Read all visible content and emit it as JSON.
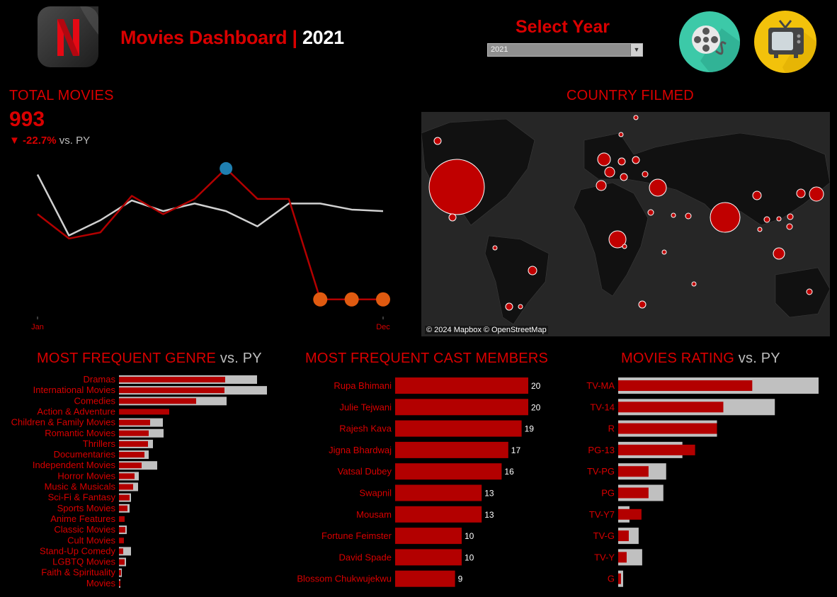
{
  "header": {
    "title": "Movies Dashboard",
    "separator": "|",
    "year": "2021",
    "select_label": "Select Year",
    "select_value": "2021"
  },
  "icons": {
    "logo": "netflix-logo-icon",
    "film": "film-reel-icon",
    "tv": "television-icon"
  },
  "colors": {
    "accent_red": "#d90000",
    "bar_red": "#b30000",
    "bar_grey": "#c0c0c0",
    "line_grey": "#d0d0d0",
    "highlight_blue": "#1f7fb0",
    "highlight_orange": "#e05a10"
  },
  "total_movies": {
    "label": "TOTAL MOVIES",
    "value": "993",
    "delta": "-22.7%",
    "delta_suffix": "vs. PY"
  },
  "country_map": {
    "title": "COUNTRY FILMED",
    "credit": "© 2024 Mapbox © OpenStreetMap"
  },
  "chart_data": [
    {
      "type": "line",
      "name": "monthly-movies",
      "x_tick_labels": [
        "Jan",
        "Dec"
      ],
      "x": [
        1,
        2,
        3,
        4,
        5,
        6,
        7,
        8,
        9,
        10,
        11,
        12
      ],
      "series": [
        {
          "values": [
            94,
            78,
            82,
            106,
            94,
            104,
            124,
            104,
            104,
            38,
            38,
            38
          ]
        },
        {
          "values": [
            120,
            80,
            90,
            103,
            96,
            101,
            96,
            86,
            101,
            101,
            97,
            96
          ]
        }
      ],
      "ylim": [
        30,
        130
      ]
    },
    {
      "type": "bar",
      "name": "genre",
      "title": "MOST FREQUENT GENRE",
      "title_suffix": "vs. PY",
      "categories": [
        "Dramas",
        "International Movies",
        "Comedies",
        "Action & Adventure",
        "Children & Family Movies",
        "Romantic Movies",
        "Thrillers",
        "Documentaries",
        "Independent Movies",
        "Horror Movies",
        "Music & Musicals",
        "Sci-Fi & Fantasy",
        "Sports Movies",
        "Anime Features",
        "Classic Movies",
        "Cult Movies",
        "Stand-Up Comedy",
        "LGBTQ Movies",
        "Faith & Spirituality",
        "Movies"
      ],
      "series": [
        {
          "values": [
            150,
            149,
            109,
            71,
            44,
            42,
            41,
            36,
            32,
            22,
            20,
            15,
            12,
            8,
            9,
            7,
            6,
            8,
            3,
            2
          ]
        },
        {
          "values": [
            195,
            209,
            152,
            0,
            62,
            63,
            48,
            42,
            54,
            28,
            27,
            17,
            15,
            0,
            11,
            0,
            17,
            10,
            4,
            2
          ]
        }
      ],
      "xlim": [
        0,
        210
      ]
    },
    {
      "type": "bar",
      "name": "cast",
      "title": "MOST FREQUENT CAST MEMBERS",
      "categories": [
        "Rupa Bhimani",
        "Julie Tejwani",
        "Rajesh Kava",
        "Jigna Bhardwaj",
        "Vatsal Dubey",
        "Swapnil",
        "Mousam",
        "Fortune Feimster",
        "David Spade",
        "Blossom Chukwujekwu"
      ],
      "values": [
        20,
        20,
        19,
        17,
        16,
        13,
        13,
        10,
        10,
        9
      ],
      "xlim": [
        0,
        20
      ]
    },
    {
      "type": "bar",
      "name": "rating",
      "title": "MOVIES RATING",
      "title_suffix": "vs. PY",
      "categories": [
        "TV-MA",
        "TV-14",
        "R",
        "PG-13",
        "TV-PG",
        "PG",
        "TV-Y7",
        "TV-G",
        "TV-Y",
        "G"
      ],
      "series": [
        {
          "values": [
            380,
            298,
            280,
            218,
            86,
            86,
            66,
            30,
            24,
            8
          ]
        },
        {
          "values": [
            568,
            444,
            280,
            182,
            136,
            128,
            32,
            58,
            68,
            14
          ]
        }
      ],
      "xlim": [
        0,
        570
      ]
    }
  ]
}
